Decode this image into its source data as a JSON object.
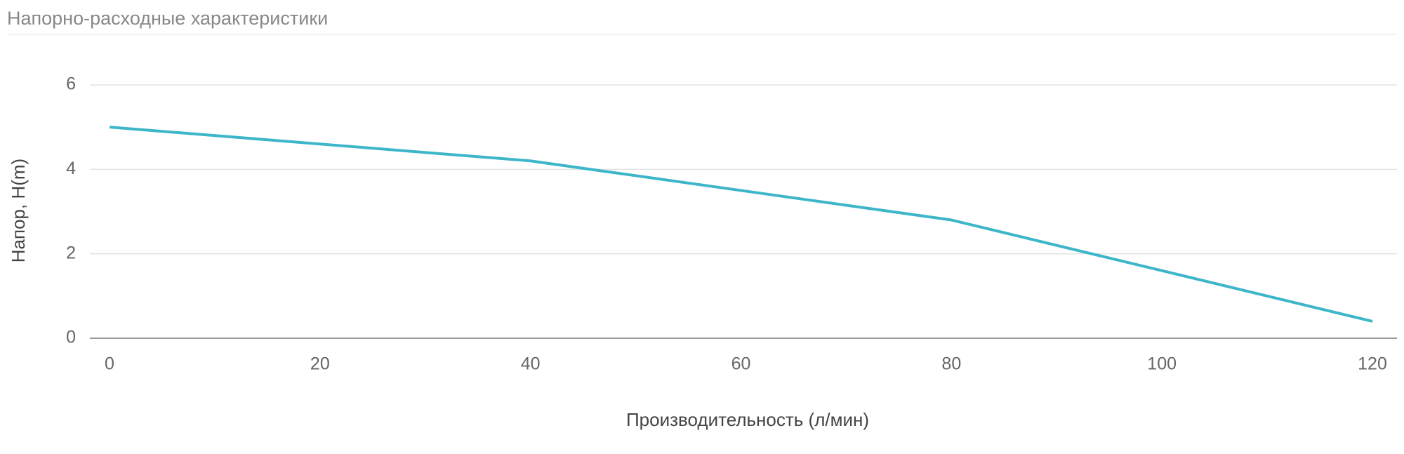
{
  "chart_data": {
    "type": "line",
    "title": "Напорно-расходные характеристики",
    "x_label": "Производительность (л/мин)",
    "y_label": "Напор, H(m)",
    "x": [
      0,
      40,
      80,
      120
    ],
    "values": [
      5,
      4.2,
      2.8,
      0.4
    ],
    "color": "#3eb6c9",
    "xlim": [
      0,
      120
    ],
    "xticks": [
      0,
      20,
      40,
      60,
      80,
      100,
      120
    ],
    "ylim": [
      0,
      6
    ],
    "yticks": [
      0,
      2,
      4,
      6
    ],
    "grid": true
  }
}
